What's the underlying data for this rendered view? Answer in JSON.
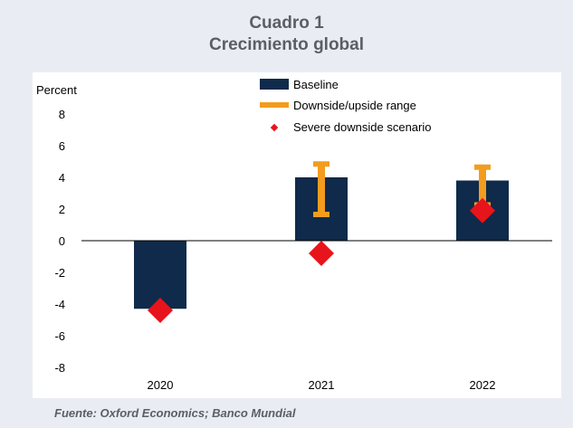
{
  "header": {
    "title_line1": "Cuadro 1",
    "title_line2": "Crecimiento global"
  },
  "source": "Fuente: Oxford Economics; Banco Mundial",
  "chart_data": {
    "type": "bar",
    "ylabel": "Percent",
    "ylim": [
      -8,
      8
    ],
    "yticks": [
      8,
      6,
      4,
      2,
      0,
      -2,
      -4,
      -6,
      -8
    ],
    "categories": [
      "2020",
      "2021",
      "2022"
    ],
    "series": [
      {
        "name": "Baseline",
        "values": [
          -4.3,
          4.0,
          3.8
        ],
        "color": "#0f2a4a"
      },
      {
        "name": "Downside/upside range",
        "low": [
          null,
          1.6,
          2.2
        ],
        "high": [
          null,
          4.9,
          4.7
        ],
        "color": "#f39c1e"
      },
      {
        "name": "Severe downside scenario",
        "values": [
          -4.4,
          -0.8,
          1.9
        ],
        "color": "#e8141b"
      }
    ],
    "legend_position": "top-center",
    "grid": false
  }
}
